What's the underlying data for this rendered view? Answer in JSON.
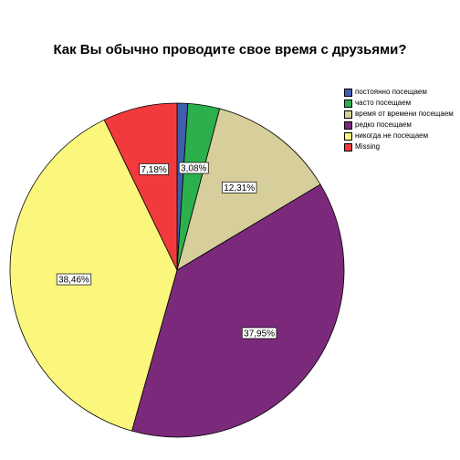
{
  "chart_data": {
    "type": "pie",
    "title": "Как Вы обычно проводите свое время с друзьями?",
    "legend_position": "top-right",
    "slices": [
      {
        "name": "постоянно посещаем",
        "value": 1.03,
        "label": "",
        "color": "#3f5fae"
      },
      {
        "name": "часто посещаем",
        "value": 3.08,
        "label": "3,08%",
        "color": "#2cb04b"
      },
      {
        "name": "время от времени посещаем",
        "value": 12.31,
        "label": "12,31%",
        "color": "#d6cf9b"
      },
      {
        "name": "редко посещаем",
        "value": 37.95,
        "label": "37,95%",
        "color": "#7b2a7b"
      },
      {
        "name": "никогда не посещаем",
        "value": 38.46,
        "label": "38,46%",
        "color": "#fbf77c"
      },
      {
        "name": "Missing",
        "value": 7.18,
        "label": "7,18%",
        "color": "#f23a3d"
      }
    ],
    "legend_order": [
      {
        "name": "постоянно посещаем",
        "color": "#3f5fae"
      },
      {
        "name": "часто посещаем",
        "color": "#2cb04b"
      },
      {
        "name": "время от времени посещаем",
        "color": "#d6cf9b"
      },
      {
        "name": "редко посещаем",
        "color": "#7b2a7b"
      },
      {
        "name": "никогда не посещаем",
        "color": "#fbf77c"
      },
      {
        "name": "Missing",
        "color": "#f23a3d"
      }
    ]
  }
}
